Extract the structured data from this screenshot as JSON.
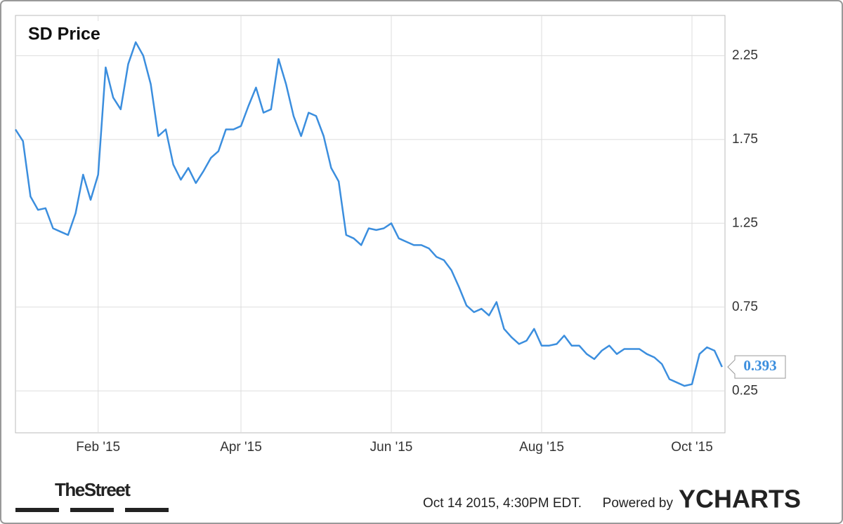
{
  "chart_data": {
    "type": "line",
    "title": "SD Price",
    "categories": [
      null,
      null,
      null,
      null,
      null,
      null,
      null,
      null,
      null,
      null,
      null,
      "Feb '15",
      null,
      null,
      null,
      null,
      null,
      null,
      null,
      null,
      null,
      null,
      null,
      null,
      null,
      null,
      null,
      null,
      null,
      null,
      "Apr '15",
      null,
      null,
      null,
      null,
      null,
      null,
      null,
      null,
      null,
      null,
      null,
      null,
      null,
      null,
      null,
      null,
      null,
      null,
      null,
      "Jun '15",
      null,
      null,
      null,
      null,
      null,
      null,
      null,
      null,
      null,
      null,
      null,
      null,
      null,
      null,
      null,
      null,
      null,
      null,
      null,
      "Aug '15",
      null,
      null,
      null,
      null,
      null,
      null,
      null,
      null,
      null,
      null,
      null,
      null,
      null,
      null,
      null,
      null,
      null,
      null,
      null,
      "Oct '15",
      null,
      null,
      null,
      null
    ],
    "values": [
      1.81,
      1.74,
      1.41,
      1.33,
      1.34,
      1.22,
      1.2,
      1.18,
      1.31,
      1.54,
      1.39,
      1.54,
      2.18,
      2.0,
      1.93,
      2.2,
      2.33,
      2.25,
      2.08,
      1.77,
      1.81,
      1.6,
      1.51,
      1.58,
      1.49,
      1.56,
      1.64,
      1.68,
      1.81,
      1.81,
      1.83,
      1.95,
      2.06,
      1.91,
      1.93,
      2.23,
      2.08,
      1.89,
      1.77,
      1.91,
      1.89,
      1.77,
      1.58,
      1.5,
      1.18,
      1.16,
      1.12,
      1.22,
      1.21,
      1.22,
      1.25,
      1.16,
      1.14,
      1.12,
      1.12,
      1.1,
      1.05,
      1.03,
      0.97,
      0.87,
      0.76,
      0.72,
      0.74,
      0.7,
      0.78,
      0.62,
      0.57,
      0.53,
      0.55,
      0.62,
      0.52,
      0.52,
      0.53,
      0.58,
      0.52,
      0.52,
      0.47,
      0.44,
      0.49,
      0.52,
      0.47,
      0.5,
      0.5,
      0.5,
      0.47,
      0.45,
      0.41,
      0.32,
      0.3,
      0.28,
      0.29,
      0.47,
      0.51,
      0.49,
      0.393
    ],
    "color": "#3b8ede",
    "ylim": [
      0,
      2.49
    ],
    "yticks": [
      0.25,
      0.75,
      1.25,
      1.75,
      2.25
    ],
    "grid": true,
    "logo": "TheStreet",
    "timestamp": "Oct 14 2015, 4:30PM EDT.",
    "powered_by": "Powered by",
    "brand": "YCHARTS"
  }
}
